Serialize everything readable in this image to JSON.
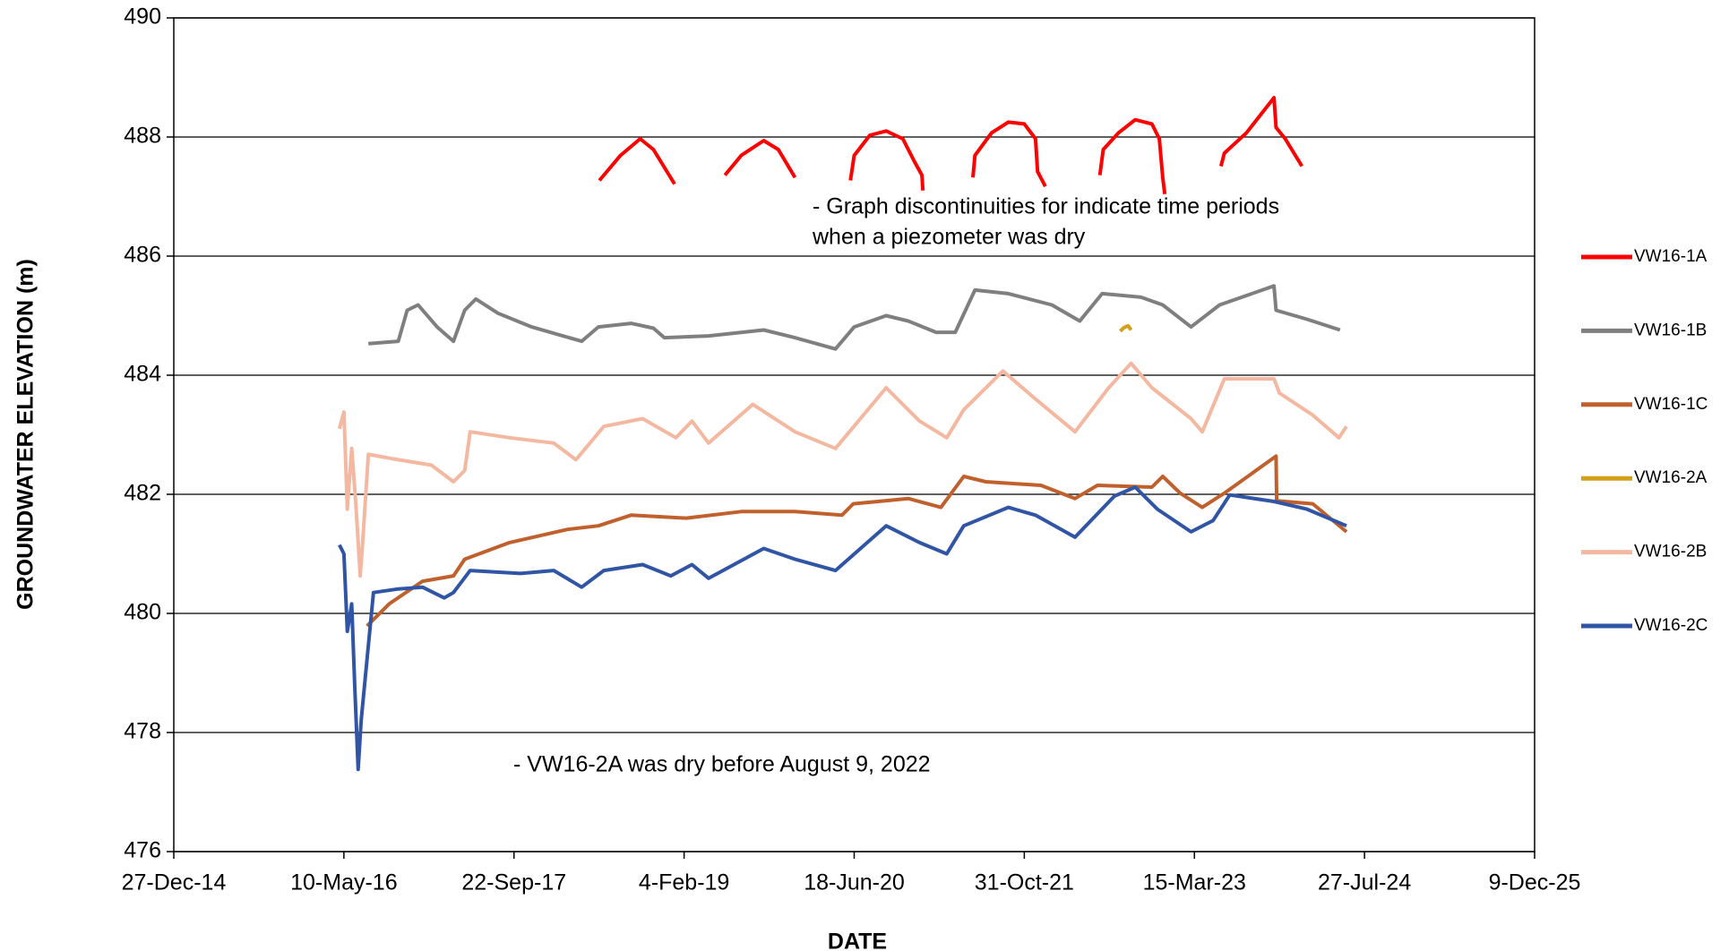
{
  "chart_data": {
    "type": "line",
    "xlabel": "DATE",
    "ylabel": "GROUNDWATER ELEVATION (m)",
    "annotations": [
      "- Graph discontinuities for indicate time periods",
      "when a piezometer was dry",
      "- VW16-2A was dry before August 9, 2022"
    ],
    "xlim": [
      "2014-12-27",
      "2025-12-09"
    ],
    "xticks": [
      {
        "value": "2014-12-27",
        "label": "27-Dec-14"
      },
      {
        "value": "2016-05-10",
        "label": "10-May-16"
      },
      {
        "value": "2017-09-22",
        "label": "22-Sep-17"
      },
      {
        "value": "2019-02-04",
        "label": "4-Feb-19"
      },
      {
        "value": "2020-06-18",
        "label": "18-Jun-20"
      },
      {
        "value": "2021-10-31",
        "label": "31-Oct-21"
      },
      {
        "value": "2023-03-15",
        "label": "15-Mar-23"
      },
      {
        "value": "2024-07-27",
        "label": "27-Jul-24"
      },
      {
        "value": "2025-12-09",
        "label": "9-Dec-25"
      }
    ],
    "ylim": [
      476,
      490
    ],
    "yticks": [
      476,
      478,
      480,
      482,
      484,
      486,
      488,
      490
    ],
    "grid": true,
    "legend": "right",
    "series": [
      {
        "name": "VW16-1A",
        "color": "#ff0000",
        "x": [
          "2018-05-31",
          "2018-08-01",
          "2018-09-28",
          "2018-11-06",
          "2019-01-07",
          "2019-03-01",
          "2019-06-04",
          "2019-07-22",
          "2019-09-26",
          "2019-11-08",
          "2019-12-27",
          "2020-03-01",
          "2020-06-07",
          "2020-06-18",
          "2020-08-03",
          "2020-09-20",
          "2020-11-08",
          "2020-12-11",
          "2021-01-03",
          "2021-01-06",
          "2021-03-01",
          "2021-06-02",
          "2021-06-08",
          "2021-07-27",
          "2021-09-14",
          "2021-10-31",
          "2021-12-03",
          "2021-12-09",
          "2022-01-01",
          "2022-03-01",
          "2022-06-10",
          "2022-06-20",
          "2022-08-04",
          "2022-09-22",
          "2022-11-10",
          "2022-12-02",
          "2022-12-12",
          "2022-12-18",
          "2023-03-01",
          "2023-06-01",
          "2023-06-11",
          "2023-08-15",
          "2023-11-04",
          "2023-11-10",
          "2023-12-07",
          "2024-01-25"
        ],
        "values": [
          487.27,
          487.69,
          487.97,
          487.79,
          487.21,
          null,
          487.36,
          487.69,
          487.94,
          487.79,
          487.32,
          null,
          487.27,
          487.69,
          488.03,
          488.1,
          487.97,
          487.6,
          487.36,
          487.1,
          null,
          487.32,
          487.69,
          488.07,
          488.25,
          488.22,
          487.97,
          487.42,
          487.17,
          null,
          487.36,
          487.79,
          488.07,
          488.29,
          488.22,
          487.97,
          487.32,
          487.04,
          null,
          487.51,
          487.73,
          488.07,
          488.66,
          488.16,
          487.97,
          487.51
        ]
      },
      {
        "name": "VW16-1B",
        "color": "#7f7f7f",
        "x": [
          "2016-07-21",
          "2016-10-17",
          "2016-11-12",
          "2016-12-14",
          "2017-02-08",
          "2017-03-28",
          "2017-04-30",
          "2017-06-02",
          "2017-08-06",
          "2017-11-13",
          "2018-04-09",
          "2018-05-28",
          "2018-09-01",
          "2018-11-06",
          "2018-12-08",
          "2019-04-17",
          "2019-09-26",
          "2019-12-27",
          "2020-04-24",
          "2020-06-18",
          "2020-09-20",
          "2020-11-24",
          "2021-02-14",
          "2021-04-11",
          "2021-06-08",
          "2021-09-14",
          "2022-01-20",
          "2022-04-12",
          "2022-06-17",
          "2022-10-09",
          "2022-12-12",
          "2023-03-05",
          "2023-05-28",
          "2023-11-04",
          "2023-11-10",
          "2024-02-09",
          "2024-05-16"
        ],
        "values": [
          484.53,
          484.57,
          485.09,
          485.18,
          484.81,
          484.57,
          485.09,
          485.28,
          485.04,
          484.81,
          484.57,
          484.81,
          484.87,
          484.79,
          484.63,
          484.66,
          484.76,
          484.63,
          484.44,
          484.81,
          485.0,
          484.91,
          484.72,
          484.72,
          485.43,
          485.37,
          485.18,
          484.91,
          485.37,
          485.31,
          485.18,
          484.81,
          485.18,
          485.5,
          485.09,
          484.94,
          484.76
        ]
      },
      {
        "name": "VW16-1C",
        "color": "#c0602c",
        "x": [
          "2016-07-17",
          "2016-09-20",
          "2016-12-27",
          "2017-03-28",
          "2017-04-30",
          "2017-09-09",
          "2018-02-26",
          "2018-05-28",
          "2018-09-01",
          "2019-02-10",
          "2019-07-22",
          "2019-12-27",
          "2020-05-13",
          "2020-06-15",
          "2020-11-24",
          "2021-02-28",
          "2021-05-06",
          "2021-07-10",
          "2021-12-19",
          "2022-03-29",
          "2022-06-03",
          "2022-11-10",
          "2022-12-12",
          "2023-02-01",
          "2023-04-07",
          "2023-06-11",
          "2023-11-10",
          "2023-11-12",
          "2024-02-26",
          "2024-06-04"
        ],
        "values": [
          479.79,
          480.16,
          480.54,
          480.63,
          480.91,
          481.19,
          481.41,
          481.47,
          481.65,
          481.6,
          481.71,
          481.71,
          481.65,
          481.84,
          481.93,
          481.78,
          482.3,
          482.21,
          482.15,
          481.93,
          482.15,
          482.12,
          482.3,
          482.02,
          481.78,
          482.02,
          482.64,
          481.89,
          481.84,
          481.37
        ]
      },
      {
        "name": "VW16-2A",
        "color": "#d4a017",
        "x": [
          "2022-08-09",
          "2022-08-20",
          "2022-09-01",
          "2022-09-10"
        ],
        "values": [
          484.74,
          484.8,
          484.83,
          484.76
        ]
      },
      {
        "name": "VW16-2B",
        "color": "#f4b8a0",
        "x": [
          "2016-04-27",
          "2016-05-10",
          "2016-05-20",
          "2016-06-02",
          "2016-06-14",
          "2016-06-27",
          "2016-07-04",
          "2016-07-21",
          "2016-10-17",
          "2017-01-22",
          "2017-03-28",
          "2017-04-30",
          "2017-05-16",
          "2017-09-09",
          "2018-01-17",
          "2018-03-23",
          "2018-06-13",
          "2018-10-05",
          "2019-01-11",
          "2019-02-27",
          "2019-04-17",
          "2019-08-25",
          "2019-12-27",
          "2020-04-24",
          "2020-09-20",
          "2020-12-27",
          "2021-03-17",
          "2021-05-06",
          "2021-08-29",
          "2021-12-03",
          "2022-03-29",
          "2022-07-06",
          "2022-09-10",
          "2022-11-10",
          "2023-03-05",
          "2023-04-07",
          "2023-06-11",
          "2023-11-04",
          "2023-11-20",
          "2024-02-26",
          "2024-05-13",
          "2024-06-04"
        ],
        "values": [
          483.1,
          483.38,
          481.75,
          482.77,
          481.84,
          480.63,
          481.19,
          482.67,
          482.58,
          482.49,
          482.21,
          482.4,
          483.05,
          482.95,
          482.86,
          482.58,
          483.14,
          483.27,
          482.95,
          483.23,
          482.86,
          483.51,
          483.05,
          482.77,
          483.79,
          483.23,
          482.95,
          483.42,
          484.07,
          483.6,
          483.05,
          483.79,
          484.2,
          483.79,
          483.27,
          483.05,
          483.94,
          483.94,
          483.7,
          483.33,
          482.95,
          483.14
        ]
      },
      {
        "name": "VW16-2C",
        "color": "#2f55a4",
        "x": [
          "2016-04-27",
          "2016-05-10",
          "2016-05-20",
          "2016-06-02",
          "2016-06-11",
          "2016-06-21",
          "2016-06-30",
          "2016-07-17",
          "2016-08-05",
          "2016-10-17",
          "2016-12-27",
          "2017-03-01",
          "2017-03-28",
          "2017-05-16",
          "2017-10-11",
          "2018-01-17",
          "2018-04-09",
          "2018-06-13",
          "2018-10-05",
          "2018-12-27",
          "2019-02-27",
          "2019-04-17",
          "2019-09-26",
          "2019-12-27",
          "2020-04-24",
          "2020-09-20",
          "2020-12-27",
          "2021-03-17",
          "2021-05-06",
          "2021-09-14",
          "2021-12-03",
          "2022-03-29",
          "2022-07-23",
          "2022-09-22",
          "2022-11-26",
          "2023-03-05",
          "2023-05-09",
          "2023-06-27",
          "2023-11-04",
          "2024-02-09",
          "2024-06-04"
        ],
        "values": [
          481.15,
          481.0,
          479.7,
          480.16,
          478.77,
          477.38,
          478.21,
          479.23,
          480.35,
          480.41,
          480.44,
          480.26,
          480.35,
          480.72,
          480.67,
          480.72,
          480.44,
          480.72,
          480.82,
          480.63,
          480.82,
          480.59,
          481.09,
          480.91,
          480.72,
          481.47,
          481.19,
          481.0,
          481.47,
          481.78,
          481.65,
          481.28,
          481.97,
          482.12,
          481.75,
          481.37,
          481.56,
          481.99,
          481.88,
          481.75,
          481.47
        ]
      }
    ]
  }
}
